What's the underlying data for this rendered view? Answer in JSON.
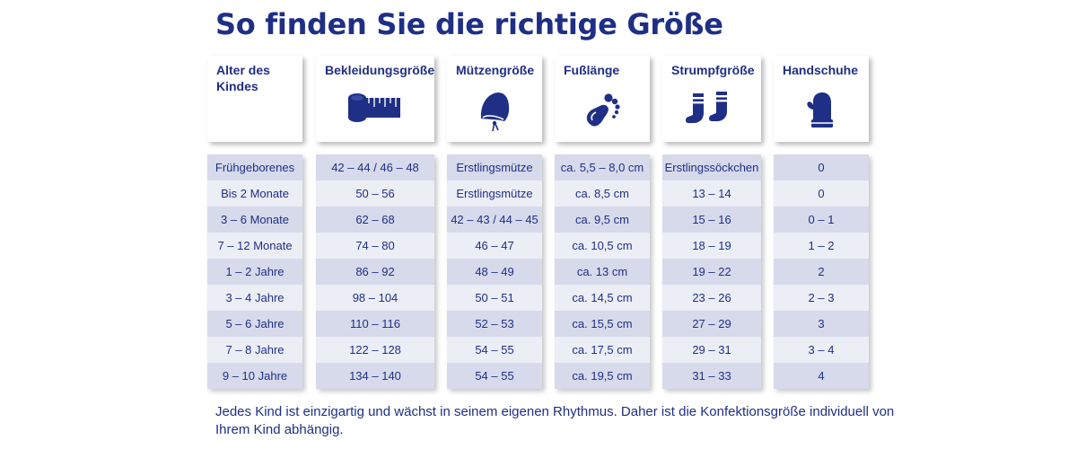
{
  "title": "So finden Sie die richtige Größe",
  "colors": {
    "primary": "#1f2f86",
    "row_odd": "#d6daeb",
    "row_even": "#eceef6"
  },
  "columns": [
    {
      "key": "alter",
      "label": "Alter des Kindes",
      "icon": ""
    },
    {
      "key": "bekleidung",
      "label": "Bekleidungsgröße",
      "icon": "measuring-tape-icon"
    },
    {
      "key": "muetze",
      "label": "Mützengröße",
      "icon": "baby-bonnet-icon"
    },
    {
      "key": "fuss",
      "label": "Fußlänge",
      "icon": "footprint-icon"
    },
    {
      "key": "strumpf",
      "label": "Strumpfgröße",
      "icon": "socks-icon"
    },
    {
      "key": "handschuhe",
      "label": "Handschuhe",
      "icon": "mitten-icon"
    }
  ],
  "rows": [
    [
      "Frühgeborenes",
      "42 – 44 / 46 – 48",
      "Erstlingsmütze",
      "ca. 5,5 – 8,0 cm",
      "Erstlingssöckchen",
      "0"
    ],
    [
      "Bis 2 Monate",
      "50 – 56",
      "Erstlingsmütze",
      "ca. 8,5 cm",
      "13 – 14",
      "0"
    ],
    [
      "3 – 6 Monate",
      "62 – 68",
      "42 – 43 / 44 – 45",
      "ca. 9,5 cm",
      "15 – 16",
      "0 – 1"
    ],
    [
      "7 – 12 Monate",
      "74 – 80",
      "46 – 47",
      "ca. 10,5 cm",
      "18 – 19",
      "1 – 2"
    ],
    [
      "1 – 2 Jahre",
      "86 – 92",
      "48 – 49",
      "ca. 13 cm",
      "19 – 22",
      "2"
    ],
    [
      "3 – 4 Jahre",
      "98 – 104",
      "50 – 51",
      "ca. 14,5 cm",
      "23 – 26",
      "2 – 3"
    ],
    [
      "5 – 6 Jahre",
      "110 – 116",
      "52 – 53",
      "ca. 15,5 cm",
      "27 – 29",
      "3"
    ],
    [
      "7 – 8 Jahre",
      "122 – 128",
      "54 – 55",
      "ca. 17,5 cm",
      "29 – 31",
      "3 – 4"
    ],
    [
      "9 – 10 Jahre",
      "134 – 140",
      "54 – 55",
      "ca. 19,5 cm",
      "31 – 33",
      "4"
    ]
  ],
  "footer": "Jedes Kind ist einzigartig und wächst in seinem eigenen Rhythmus. Daher ist die Konfektionsgröße individuell von Ihrem Kind abhängig."
}
